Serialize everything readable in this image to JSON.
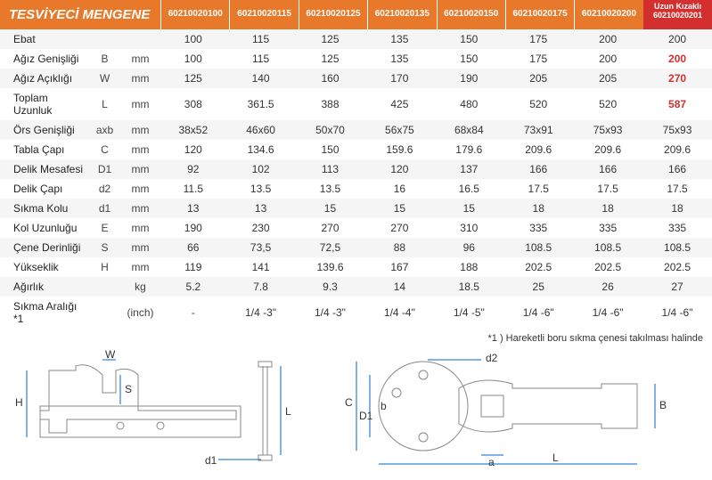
{
  "title": "TESVİYECİ MENGENE",
  "corner_label": "Uzun Kızaklı",
  "corner_code": "60210020201",
  "codes": [
    "60210020100",
    "60210020115",
    "60210020125",
    "60210020135",
    "60210020150",
    "60210020175",
    "60210020200"
  ],
  "rows": [
    {
      "label": "Ebat",
      "sym": "",
      "unit": "",
      "vals": [
        "100",
        "115",
        "125",
        "135",
        "150",
        "175",
        "200",
        "200"
      ]
    },
    {
      "label": "Ağız Genişliği",
      "sym": "B",
      "unit": "mm",
      "vals": [
        "100",
        "115",
        "125",
        "135",
        "150",
        "175",
        "200",
        "200"
      ],
      "lastRed": true
    },
    {
      "label": "Ağız Açıklığı",
      "sym": "W",
      "unit": "mm",
      "vals": [
        "125",
        "140",
        "160",
        "170",
        "190",
        "205",
        "205",
        "270"
      ],
      "lastRed": true
    },
    {
      "label": "Toplam Uzunluk",
      "sym": "L",
      "unit": "mm",
      "vals": [
        "308",
        "361.5",
        "388",
        "425",
        "480",
        "520",
        "520",
        "587"
      ],
      "lastRed": true
    },
    {
      "label": "Örs Genişliği",
      "sym": "axb",
      "unit": "mm",
      "vals": [
        "38x52",
        "46x60",
        "50x70",
        "56x75",
        "68x84",
        "73x91",
        "75x93",
        "75x93"
      ]
    },
    {
      "label": "Tabla Çapı",
      "sym": "C",
      "unit": "mm",
      "vals": [
        "120",
        "134.6",
        "150",
        "159.6",
        "179.6",
        "209.6",
        "209.6",
        "209.6"
      ]
    },
    {
      "label": "Delik Mesafesi",
      "sym": "D1",
      "unit": "mm",
      "vals": [
        "92",
        "102",
        "113",
        "120",
        "137",
        "166",
        "166",
        "166"
      ]
    },
    {
      "label": "Delik Çapı",
      "sym": "d2",
      "unit": "mm",
      "vals": [
        "11.5",
        "13.5",
        "13.5",
        "16",
        "16.5",
        "17.5",
        "17.5",
        "17.5"
      ]
    },
    {
      "label": "Sıkma Kolu",
      "sym": "d1",
      "unit": "mm",
      "vals": [
        "13",
        "13",
        "15",
        "15",
        "15",
        "18",
        "18",
        "18"
      ]
    },
    {
      "label": "Kol Uzunluğu",
      "sym": "E",
      "unit": "mm",
      "vals": [
        "190",
        "230",
        "270",
        "270",
        "310",
        "335",
        "335",
        "335"
      ]
    },
    {
      "label": "Çene Derinliği",
      "sym": "S",
      "unit": "mm",
      "vals": [
        "66",
        "73,5",
        "72,5",
        "88",
        "96",
        "108.5",
        "108.5",
        "108.5"
      ]
    },
    {
      "label": "Yükseklik",
      "sym": "H",
      "unit": "mm",
      "vals": [
        "119",
        "141",
        "139.6",
        "167",
        "188",
        "202.5",
        "202.5",
        "202.5"
      ]
    },
    {
      "label": "Ağırlık",
      "sym": "",
      "unit": "kg",
      "vals": [
        "5.2",
        "7.8",
        "9.3",
        "14",
        "18.5",
        "25",
        "26",
        "27"
      ]
    },
    {
      "label": "Sıkma Aralığı *1",
      "sym": "",
      "unit": "(inch)",
      "vals": [
        "-",
        "1/4 -3\"",
        "1/4 -3\"",
        "1/4 -4\"",
        "1/4 -5\"",
        "1/4 -6\"",
        "1/4 -6\"",
        "1/4 -6\""
      ]
    }
  ],
  "footnote": "*1 ) Hareketli boru sıkma çenesi takılması halinde",
  "dims": {
    "H": "H",
    "W": "W",
    "S": "S",
    "L": "L",
    "d1": "d1",
    "d2": "d2",
    "C": "C",
    "D1": "D1",
    "b": "b",
    "a": "a",
    "B": "B",
    "L2": "L"
  }
}
